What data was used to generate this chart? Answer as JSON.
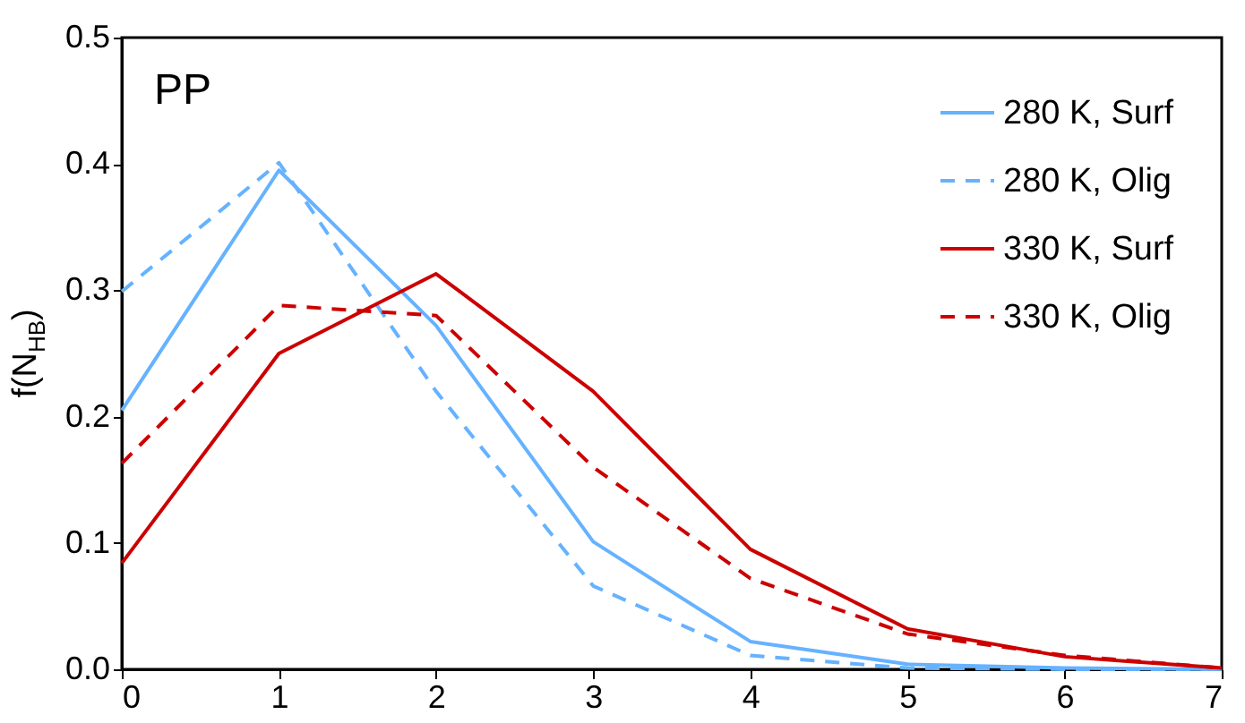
{
  "chart_data": {
    "type": "line",
    "ylabel": "f(N$_{HB}$)",
    "annotations": [
      "PP"
    ],
    "x": [
      0,
      1,
      2,
      3,
      4,
      5,
      6,
      7
    ],
    "series": [
      {
        "name": "280 K, Surf",
        "color": "#66b2ff",
        "line_style": "solid",
        "values": [
          0.205,
          0.395,
          0.272,
          0.101,
          0.022,
          0.004,
          0.001,
          0.0
        ]
      },
      {
        "name": "280 K, Olig",
        "color": "#66b2ff",
        "line_style": "dashed",
        "values": [
          0.299,
          0.401,
          0.22,
          0.066,
          0.011,
          0.001,
          0.0,
          0.0
        ]
      },
      {
        "name": "330 K, Surf",
        "color": "#cc0000",
        "line_style": "solid",
        "values": [
          0.084,
          0.25,
          0.313,
          0.22,
          0.095,
          0.032,
          0.01,
          0.001
        ]
      },
      {
        "name": "330 K, Olig",
        "color": "#cc0000",
        "line_style": "dashed",
        "values": [
          0.163,
          0.288,
          0.28,
          0.16,
          0.072,
          0.028,
          0.011,
          0.001
        ]
      }
    ],
    "xlim": [
      0,
      7
    ],
    "xticks": [
      0,
      1,
      2,
      3,
      4,
      5,
      6,
      7
    ],
    "ylim": [
      0,
      0.5
    ],
    "yticks": [
      {
        "value": 0,
        "label": "0.0"
      },
      0.1,
      0.2,
      0.3,
      0.4,
      0.5
    ],
    "grid": false,
    "legend": "top right",
    "marker": "none"
  }
}
